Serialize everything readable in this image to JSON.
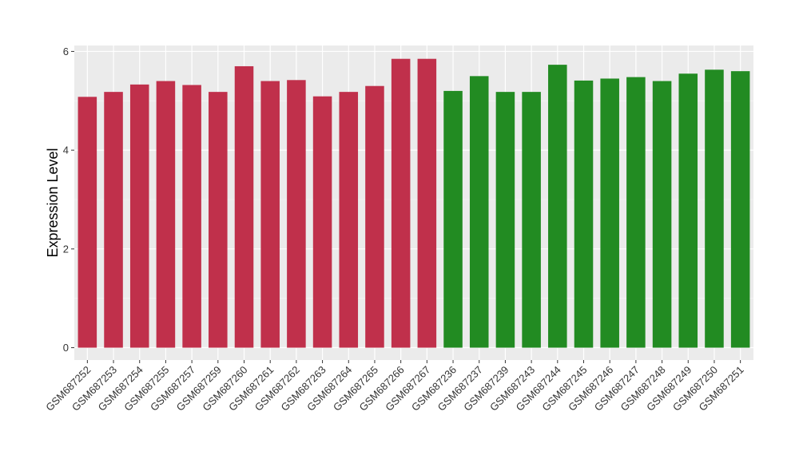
{
  "chart_data": {
    "type": "bar",
    "title": "",
    "xlabel": "",
    "ylabel": "Expression Level",
    "ylim": [
      -0.25,
      6.12
    ],
    "yticks": [
      0,
      2,
      4,
      6
    ],
    "grid": true,
    "legend": "none",
    "colors": {
      "group_a": "#c0304b",
      "group_b": "#228b22",
      "panel_bg": "#ebebeb",
      "grid_major": "#ffffff",
      "grid_minor": "#f5f5f5"
    },
    "categories": [
      "GSM687252",
      "GSM687253",
      "GSM687254",
      "GSM687255",
      "GSM687257",
      "GSM687259",
      "GSM687260",
      "GSM687261",
      "GSM687262",
      "GSM687263",
      "GSM687264",
      "GSM687265",
      "GSM687266",
      "GSM687267",
      "GSM687236",
      "GSM687237",
      "GSM687239",
      "GSM687243",
      "GSM687244",
      "GSM687245",
      "GSM687246",
      "GSM687247",
      "GSM687248",
      "GSM687249",
      "GSM687250",
      "GSM687251"
    ],
    "values": [
      5.08,
      5.18,
      5.33,
      5.4,
      5.32,
      5.18,
      5.7,
      5.4,
      5.42,
      5.09,
      5.18,
      5.3,
      5.85,
      5.85,
      5.2,
      5.5,
      5.18,
      5.18,
      5.73,
      5.41,
      5.45,
      5.48,
      5.4,
      5.55,
      5.63,
      5.6
    ],
    "groups": [
      "a",
      "a",
      "a",
      "a",
      "a",
      "a",
      "a",
      "a",
      "a",
      "a",
      "a",
      "a",
      "a",
      "a",
      "b",
      "b",
      "b",
      "b",
      "b",
      "b",
      "b",
      "b",
      "b",
      "b",
      "b",
      "b"
    ]
  }
}
